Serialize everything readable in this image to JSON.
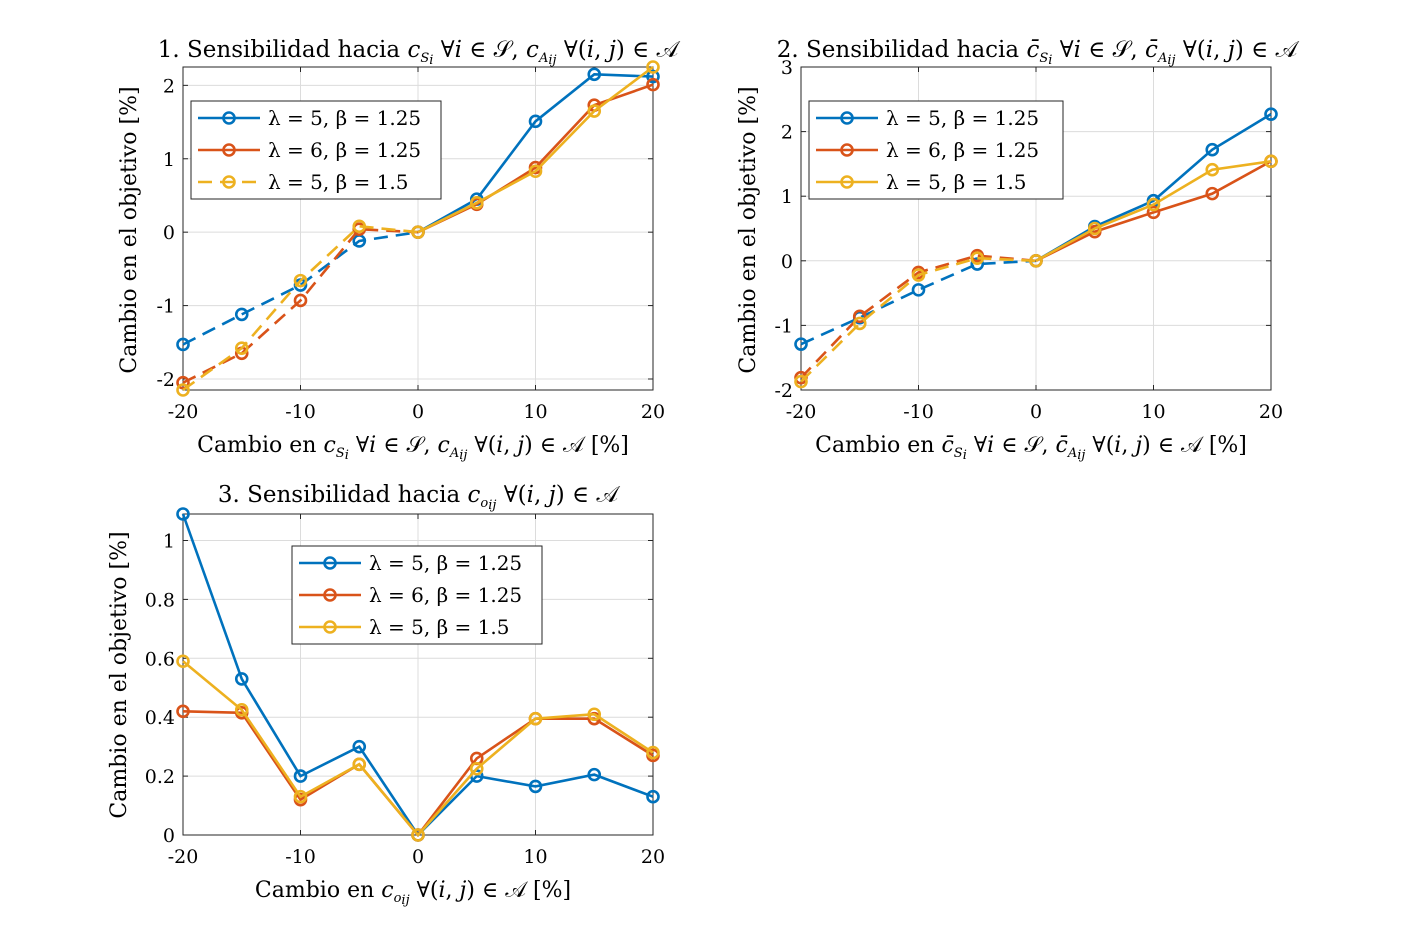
{
  "chart_data": [
    {
      "type": "line",
      "title": "1. Sensibilidad hacia c_{S_i} ∀i ∈ 𝒮, c_{A_ij} ∀(i, j) ∈ 𝒜",
      "xlabel": "Cambio en c_{S_i} ∀i ∈ 𝒮, c_{A_ij} ∀(i, j) ∈ 𝒜 [%]",
      "ylabel": "Cambio en el objetivo [%]",
      "xlim": [
        -20,
        20
      ],
      "ylim": [
        -2.15,
        2.25
      ],
      "xticks": [
        -20,
        -10,
        0,
        10,
        20
      ],
      "yticks": [
        -2,
        -1,
        0,
        1,
        2
      ],
      "grid": true,
      "legend_position": "top-left",
      "x": [
        -20,
        -15,
        -10,
        -5,
        0,
        5,
        10,
        15,
        20
      ],
      "series": [
        {
          "name": "λ = 5, β = 1.25",
          "color": "#0072BD",
          "values": [
            -1.53,
            -1.12,
            -0.72,
            -0.12,
            0,
            0.45,
            1.51,
            2.15,
            2.12
          ]
        },
        {
          "name": "λ = 6, β = 1.25",
          "color": "#D95319",
          "values": [
            -2.05,
            -1.65,
            -0.93,
            0.04,
            0,
            0.38,
            0.88,
            1.73,
            2.01
          ]
        },
        {
          "name": "λ = 5, β = 1.5",
          "color": "#EDB120",
          "values": [
            -2.15,
            -1.58,
            -0.66,
            0.08,
            0,
            0.4,
            0.83,
            1.65,
            2.25
          ]
        }
      ]
    },
    {
      "type": "line",
      "title": "2. Sensibilidad hacia c̄_{S_i} ∀i ∈ 𝒮, c̄_{A_ij} ∀(i, j) ∈ 𝒜",
      "xlabel": "Cambio en c̄_{S_i} ∀i ∈ 𝒮, c̄_{A_ij} ∀(i, j) ∈ 𝒜 [%]",
      "ylabel": "Cambio en el objetivo [%]",
      "xlim": [
        -20,
        20
      ],
      "ylim": [
        -2,
        3
      ],
      "xticks": [
        -20,
        -10,
        0,
        10,
        20
      ],
      "yticks": [
        -2,
        -1,
        0,
        1,
        2,
        3
      ],
      "grid": true,
      "legend_position": "top-left",
      "x": [
        -20,
        -15,
        -10,
        -5,
        0,
        5,
        10,
        15,
        20
      ],
      "series": [
        {
          "name": "λ = 5, β = 1.25",
          "color": "#0072BD",
          "values": [
            -1.29,
            -0.88,
            -0.45,
            -0.05,
            0,
            0.53,
            0.93,
            1.72,
            2.27
          ]
        },
        {
          "name": "λ = 6, β = 1.25",
          "color": "#D95319",
          "values": [
            -1.81,
            -0.86,
            -0.18,
            0.08,
            0,
            0.45,
            0.75,
            1.04,
            1.54
          ]
        },
        {
          "name": "λ = 5, β = 1.5",
          "color": "#EDB120",
          "values": [
            -1.87,
            -0.97,
            -0.22,
            0.04,
            0,
            0.5,
            0.87,
            1.41,
            1.54
          ]
        }
      ]
    },
    {
      "type": "line",
      "title": "3. Sensibilidad hacia c_{o_ij} ∀(i, j) ∈ 𝒜",
      "xlabel": "Cambio en c_{o_ij} ∀(i, j) ∈ 𝒜 [%]",
      "ylabel": "Cambio en el objetivo [%]",
      "xlim": [
        -20,
        20
      ],
      "ylim": [
        0,
        1.09
      ],
      "xticks": [
        -20,
        -10,
        0,
        10,
        20
      ],
      "yticks": [
        0,
        0.2,
        0.4,
        0.6,
        0.8,
        1
      ],
      "grid": true,
      "legend_position": "top-center",
      "x": [
        -20,
        -15,
        -10,
        -5,
        0,
        5,
        10,
        15,
        20
      ],
      "series": [
        {
          "name": "λ = 5, β = 1.25",
          "color": "#0072BD",
          "values": [
            1.09,
            0.53,
            0.2,
            0.3,
            0,
            0.2,
            0.165,
            0.205,
            0.13
          ]
        },
        {
          "name": "λ = 6, β = 1.25",
          "color": "#D95319",
          "values": [
            0.42,
            0.415,
            0.12,
            0.24,
            0,
            0.26,
            0.395,
            0.395,
            0.27
          ]
        },
        {
          "name": "λ = 5, β = 1.5",
          "color": "#EDB120",
          "values": [
            0.59,
            0.425,
            0.13,
            0.24,
            0,
            0.225,
            0.395,
            0.41,
            0.28
          ]
        }
      ]
    }
  ]
}
